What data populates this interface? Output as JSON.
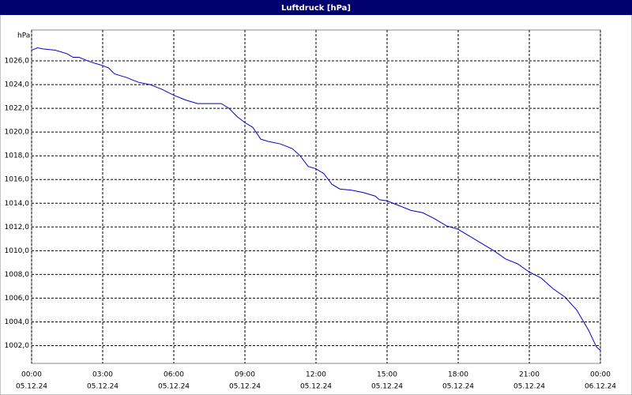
{
  "chart_data": {
    "type": "line",
    "title": "Luftdruck [hPa]",
    "ylabel": "hPa",
    "x": [
      0,
      0.25,
      0.5,
      1,
      1.5,
      1.75,
      2,
      2.5,
      3,
      3.25,
      3.5,
      4,
      4.5,
      5,
      5.5,
      6,
      6.5,
      7,
      7.5,
      8,
      8.33,
      8.67,
      9,
      9.33,
      9.67,
      10,
      10.5,
      11,
      11.33,
      11.67,
      12,
      12.33,
      12.67,
      13,
      13.5,
      14,
      14.5,
      14.67,
      15,
      15.5,
      16,
      16.5,
      17,
      17.5,
      18,
      18.5,
      19,
      19.5,
      20,
      20.5,
      21,
      21.5,
      22,
      22.5,
      23,
      23.5,
      23.83,
      24
    ],
    "series": [
      {
        "name": "Luftdruck",
        "color": "#0000cc",
        "values": [
          1026.9,
          1027.1,
          1027.0,
          1026.9,
          1026.6,
          1026.3,
          1026.3,
          1025.9,
          1025.6,
          1025.4,
          1024.9,
          1024.6,
          1024.2,
          1024.0,
          1023.6,
          1023.1,
          1022.7,
          1022.4,
          1022.4,
          1022.4,
          1022.0,
          1021.3,
          1020.8,
          1020.4,
          1019.4,
          1019.2,
          1019.0,
          1018.6,
          1018.0,
          1017.1,
          1016.9,
          1016.5,
          1015.6,
          1015.2,
          1015.1,
          1014.9,
          1014.6,
          1014.3,
          1014.2,
          1013.8,
          1013.4,
          1013.2,
          1012.7,
          1012.1,
          1011.8,
          1011.2,
          1010.6,
          1010.0,
          1009.3,
          1008.9,
          1008.2,
          1007.7,
          1006.8,
          1006.1,
          1005.0,
          1003.3,
          1001.9,
          1001.6
        ]
      }
    ],
    "xlim": [
      0,
      24
    ],
    "xticks": [
      {
        "value": 0,
        "label": "00:00"
      },
      {
        "value": 3,
        "label": "03:00"
      },
      {
        "value": 6,
        "label": "06:00"
      },
      {
        "value": 9,
        "label": "09:00"
      },
      {
        "value": 12,
        "label": "12:00"
      },
      {
        "value": 15,
        "label": "15:00"
      },
      {
        "value": 18,
        "label": "18:00"
      },
      {
        "value": 21,
        "label": "21:00"
      },
      {
        "value": 24,
        "label": "00:00"
      }
    ],
    "xtick_dates": [
      "05.12.24",
      "05.12.24",
      "05.12.24",
      "05.12.24",
      "05.12.24",
      "05.12.24",
      "05.12.24",
      "05.12.24",
      "06.12.24"
    ],
    "ylim": [
      1000.5,
      1028.6
    ],
    "yticks": [
      {
        "value": 1002,
        "label": "1002,0"
      },
      {
        "value": 1004,
        "label": "1004,0"
      },
      {
        "value": 1006,
        "label": "1006,0"
      },
      {
        "value": 1008,
        "label": "1008,0"
      },
      {
        "value": 1010,
        "label": "1010,0"
      },
      {
        "value": 1012,
        "label": "1012,0"
      },
      {
        "value": 1014,
        "label": "1014,0"
      },
      {
        "value": 1016,
        "label": "1016,0"
      },
      {
        "value": 1018,
        "label": "1018,0"
      },
      {
        "value": 1020,
        "label": "1020,0"
      },
      {
        "value": 1022,
        "label": "1022,0"
      },
      {
        "value": 1024,
        "label": "1024,0"
      },
      {
        "value": 1026,
        "label": "1026,0"
      }
    ],
    "grid": true
  }
}
